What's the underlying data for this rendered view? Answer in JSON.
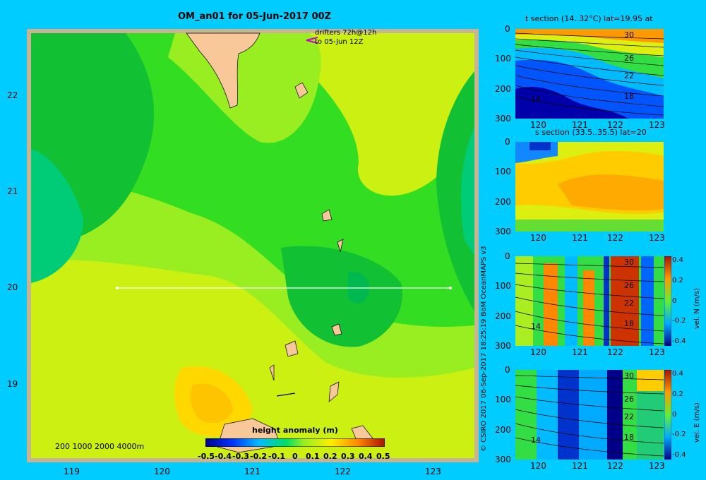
{
  "map": {
    "title": "OM_an01 for 05-Jun-2017 00Z",
    "drifters_line1": "drifters 72h@12h",
    "drifters_line2": "to 05-Jun 12Z",
    "depth_scale": "200 1000 2000 4000m",
    "x_ticks": [
      "119",
      "120",
      "121",
      "122",
      "123"
    ],
    "y_ticks": [
      "22",
      "21",
      "20",
      "19"
    ],
    "colorbar": {
      "title": "height anomaly (m)",
      "labels": [
        "-0.5",
        "-0.4",
        "-0.3",
        "-0.2",
        "-0.1",
        "0",
        "0.1",
        "0.2",
        "0.3",
        "0.4",
        "0.5"
      ]
    }
  },
  "copyright": "© CSIRO 2017   06-Sep-2017 18:25:19 BoM OceanMAPS v3",
  "panels": [
    {
      "id": "t",
      "title": "t section (14..32°C) lat=19.95 at",
      "y_ticks": [
        "0",
        "100",
        "200",
        "300"
      ],
      "x_ticks": [
        "120",
        "121",
        "122",
        "123"
      ],
      "contour_labels": [
        "30",
        "26",
        "22",
        "18",
        "14"
      ]
    },
    {
      "id": "s",
      "title": "s section (33.5..35.5) lat=20",
      "y_ticks": [
        "0",
        "100",
        "200",
        "300"
      ],
      "x_ticks": [
        "120",
        "121",
        "122",
        "123"
      ]
    },
    {
      "id": "n",
      "title": "",
      "y_ticks": [
        "0",
        "100",
        "200",
        "300"
      ],
      "x_ticks": [
        "120",
        "121",
        "122",
        "123"
      ],
      "contour_labels": [
        "30",
        "26",
        "22",
        "18",
        "14"
      ],
      "cbar_label": "vel. N (m/s)",
      "cbar_ticks": [
        "0.4",
        "0.2",
        "0",
        "-0.2",
        "-0.4"
      ]
    },
    {
      "id": "e",
      "title": "",
      "y_ticks": [
        "0",
        "100",
        "200",
        "300"
      ],
      "x_ticks": [
        "120",
        "121",
        "122",
        "123"
      ],
      "contour_labels": [
        "30",
        "26",
        "22",
        "18",
        "14"
      ],
      "cbar_label": "vel. E (m/s)",
      "cbar_ticks": [
        "0.4",
        "0.2",
        "0",
        "-0.2",
        "-0.4"
      ]
    }
  ]
}
